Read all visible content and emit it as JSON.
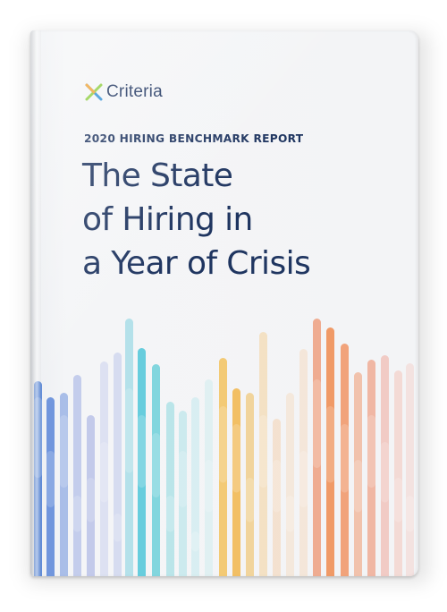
{
  "cover": {
    "brand": "Criteria",
    "kicker": "2020 HIRING BENCHMARK REPORT",
    "title_lines": [
      "The State",
      "of Hiring in",
      "a Year of Crisis"
    ]
  },
  "colors": {
    "text": "#1f3560",
    "bar_palette": [
      "#4f7fd4",
      "#7f92d8",
      "#47c6d4",
      "#f4b43a",
      "#ef8f4c",
      "#e9786a"
    ]
  },
  "icons": {
    "logo_mark": "x-mark-icon"
  }
}
